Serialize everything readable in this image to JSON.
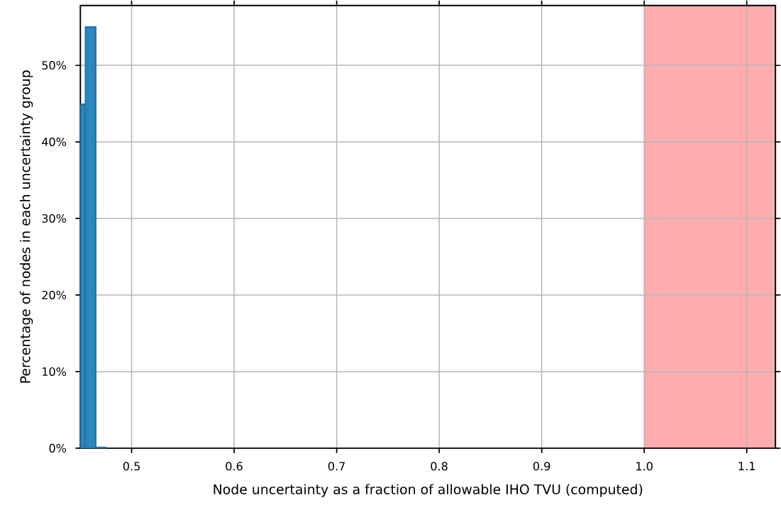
{
  "chart_data": {
    "type": "histogram",
    "xlabel": "Node uncertainty as a fraction of allowable IHO TVU (computed)",
    "ylabel": "Percentage of nodes in each uncertainty group",
    "bins": [
      0.45,
      0.455,
      0.465,
      0.475
    ],
    "values": [
      44.9,
      55.0,
      0.1
    ],
    "color": "#2a87bf",
    "xlim": [
      0.45,
      1.128
    ],
    "ylim": [
      0,
      57.8
    ],
    "xticks": [
      {
        "value": 0.5,
        "label": "0.5"
      },
      {
        "value": 0.6,
        "label": "0.6"
      },
      {
        "value": 0.7,
        "label": "0.7"
      },
      {
        "value": 0.8,
        "label": "0.8"
      },
      {
        "value": 0.9,
        "label": "0.9"
      },
      {
        "value": 1.0,
        "label": "1.0"
      },
      {
        "value": 1.1,
        "label": "1.1"
      }
    ],
    "yticks": [
      {
        "value": 0,
        "label": "0%"
      },
      {
        "value": 10,
        "label": "10%"
      },
      {
        "value": 20,
        "label": "20%"
      },
      {
        "value": 30,
        "label": "30%"
      },
      {
        "value": 40,
        "label": "40%"
      },
      {
        "value": 50,
        "label": "50%"
      }
    ],
    "bands": [
      {
        "axis": "x",
        "from": 1.0,
        "to": 1.128,
        "color": "#ffacaf"
      }
    ],
    "grid": true
  }
}
